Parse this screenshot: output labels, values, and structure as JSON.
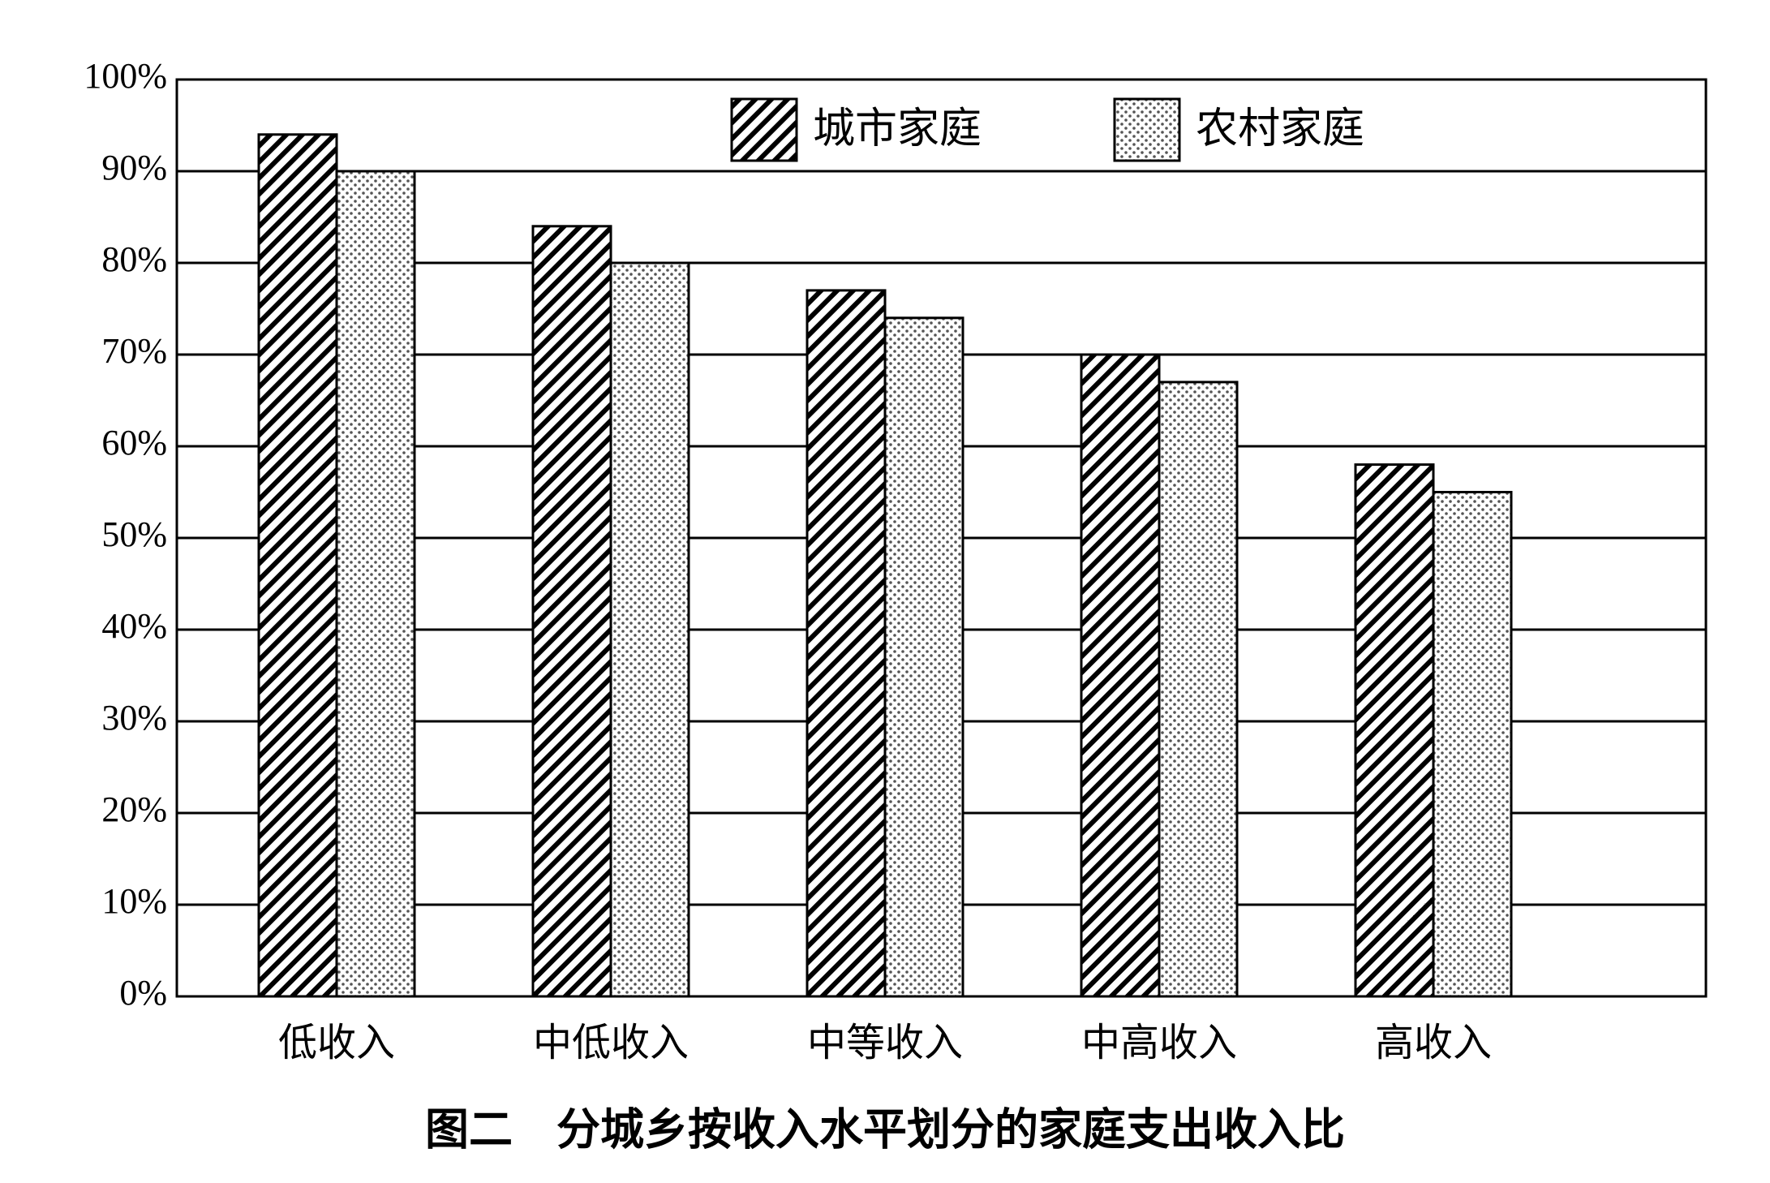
{
  "chart_data": {
    "type": "bar",
    "title": "图二　分城乡按收入水平划分的家庭支出收入比",
    "categories": [
      "低收入",
      "中低收入",
      "中等收入",
      "中高收入",
      "高收入"
    ],
    "series": [
      {
        "name": "城市家庭",
        "color": "#000000",
        "pattern": "hatch",
        "values": [
          94,
          84,
          77,
          70,
          58
        ]
      },
      {
        "name": "农村家庭",
        "color": "#000000",
        "pattern": "dots",
        "values": [
          90,
          80,
          74,
          67,
          55
        ]
      }
    ],
    "ylim": [
      0,
      100
    ],
    "yticks": [
      {
        "value": 0,
        "label": "0%"
      },
      {
        "value": 10,
        "label": "10%"
      },
      {
        "value": 20,
        "label": "20%"
      },
      {
        "value": 30,
        "label": "30%"
      },
      {
        "value": 40,
        "label": "40%"
      },
      {
        "value": 50,
        "label": "50%"
      },
      {
        "value": 60,
        "label": "60%"
      },
      {
        "value": 70,
        "label": "70%"
      },
      {
        "value": 80,
        "label": "80%"
      },
      {
        "value": 90,
        "label": "90%"
      },
      {
        "value": 100,
        "label": "100%"
      }
    ],
    "grid": true
  }
}
